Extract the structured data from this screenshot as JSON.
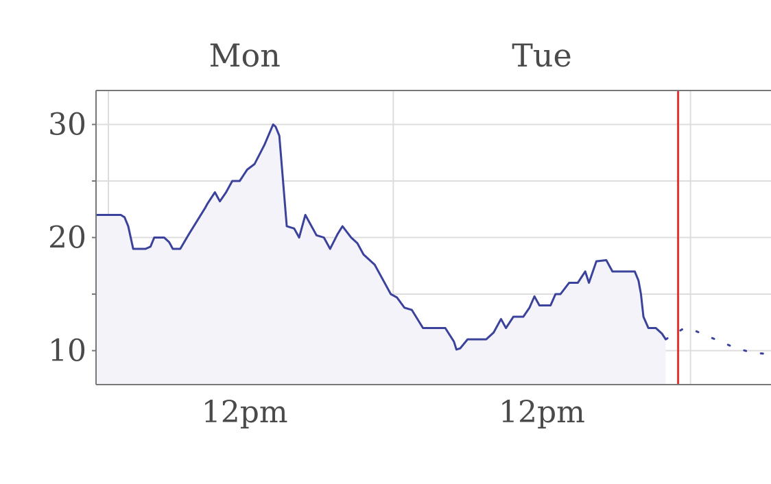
{
  "chart_data": {
    "type": "line",
    "x_unit": "hours",
    "top_axis_labels": [
      {
        "label": "Mon",
        "x": 12
      },
      {
        "label": "Tue",
        "x": 36
      }
    ],
    "x_tick_labels": [
      {
        "label": "12pm",
        "x": 12
      },
      {
        "label": "12pm",
        "x": 36
      }
    ],
    "day_boundaries": [
      1,
      24,
      48
    ],
    "current_time_x": 47,
    "xlim": [
      0,
      54.5
    ],
    "ylim": [
      7,
      33
    ],
    "y_ticks": [
      10,
      20,
      30
    ],
    "y_minor_ticks": [
      15,
      25
    ],
    "grid": true,
    "colors": {
      "line": "#3b429b",
      "fill": "#f4f3fa",
      "now_marker": "#e8302c",
      "grid": "#dddddd",
      "axis": "#777777"
    },
    "series": [
      {
        "style": "solid-filled",
        "points": [
          [
            0,
            22
          ],
          [
            2,
            22
          ],
          [
            2.3,
            21.8
          ],
          [
            2.6,
            21
          ],
          [
            2.8,
            20
          ],
          [
            3,
            19
          ],
          [
            4,
            19
          ],
          [
            4.4,
            19.2
          ],
          [
            4.7,
            20
          ],
          [
            5.5,
            20
          ],
          [
            5.9,
            19.6
          ],
          [
            6.2,
            19
          ],
          [
            6.8,
            19
          ],
          [
            7.5,
            20.3
          ],
          [
            8.8,
            22.6
          ],
          [
            9,
            23
          ],
          [
            9.6,
            24
          ],
          [
            10,
            23.2
          ],
          [
            10.5,
            24
          ],
          [
            11,
            25
          ],
          [
            11.6,
            25
          ],
          [
            12.2,
            26
          ],
          [
            12.8,
            26.5
          ],
          [
            13.6,
            28.2
          ],
          [
            14.3,
            30
          ],
          [
            14.5,
            29.8
          ],
          [
            14.8,
            29
          ],
          [
            15.1,
            25
          ],
          [
            15.4,
            21
          ],
          [
            16,
            20.8
          ],
          [
            16.4,
            20
          ],
          [
            16.9,
            22
          ],
          [
            17.8,
            20.2
          ],
          [
            18.4,
            20
          ],
          [
            18.9,
            19
          ],
          [
            19.5,
            20.3
          ],
          [
            19.9,
            21
          ],
          [
            20.6,
            20
          ],
          [
            21.1,
            19.5
          ],
          [
            21.6,
            18.5
          ],
          [
            22.1,
            18
          ],
          [
            22.5,
            17.6
          ],
          [
            23.2,
            16.2
          ],
          [
            23.8,
            15
          ],
          [
            24.3,
            14.7
          ],
          [
            24.9,
            13.8
          ],
          [
            25.5,
            13.6
          ],
          [
            26.4,
            12
          ],
          [
            28.2,
            12
          ],
          [
            28.9,
            10.8
          ],
          [
            29.1,
            10.1
          ],
          [
            29.4,
            10.2
          ],
          [
            30,
            11
          ],
          [
            31.5,
            11
          ],
          [
            32.1,
            11.6
          ],
          [
            32.7,
            12.8
          ],
          [
            33.1,
            12
          ],
          [
            33.7,
            13
          ],
          [
            34.5,
            13
          ],
          [
            35,
            13.8
          ],
          [
            35.4,
            14.8
          ],
          [
            35.8,
            14
          ],
          [
            36.7,
            14
          ],
          [
            37.1,
            15
          ],
          [
            37.5,
            15
          ],
          [
            38.2,
            16
          ],
          [
            38.9,
            16
          ],
          [
            39.5,
            17
          ],
          [
            39.8,
            16
          ],
          [
            40.4,
            17.9
          ],
          [
            41.2,
            18
          ],
          [
            41.7,
            17
          ],
          [
            43.5,
            17
          ],
          [
            43.8,
            16.2
          ],
          [
            44,
            15
          ],
          [
            44.2,
            13
          ],
          [
            44.6,
            12
          ],
          [
            45.2,
            12
          ],
          [
            45.7,
            11.5
          ],
          [
            46,
            11
          ]
        ]
      },
      {
        "style": "dotted-forecast",
        "points": [
          [
            46,
            11
          ],
          [
            47.5,
            12
          ],
          [
            48.5,
            11.7
          ],
          [
            50,
            11
          ],
          [
            51.5,
            10.3
          ],
          [
            53,
            9.8
          ],
          [
            54.5,
            9.7
          ]
        ]
      }
    ]
  }
}
